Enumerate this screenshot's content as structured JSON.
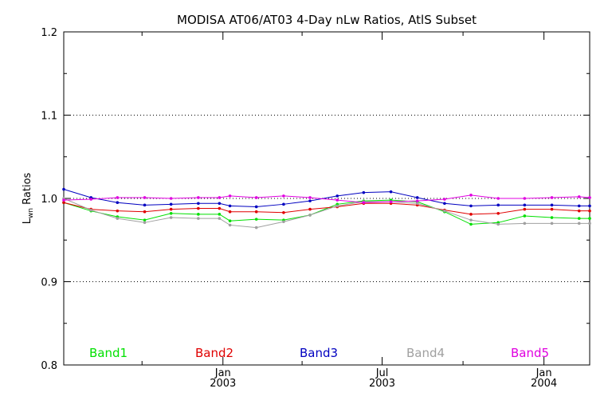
{
  "chart_data": {
    "type": "line",
    "title": "MODISA AT06/AT03 4-Day nLw Ratios, AtlS Subset",
    "ylabel_main": "L",
    "ylabel_sub": "wn",
    "ylabel_rest": " Ratios",
    "ylim": [
      0.8,
      1.2
    ],
    "yticks": [
      0.8,
      0.9,
      1.0,
      1.1,
      1.2
    ],
    "ytick_labels": [
      "0.8",
      "0.9",
      "1.0",
      "1.1",
      "1.2"
    ],
    "grid_y": [
      0.9,
      1.0,
      1.1
    ],
    "xlim": [
      "2002-07-04",
      "2004-02-22"
    ],
    "xticks_major": [
      {
        "date": "2003-01-01",
        "line1": "Jan",
        "line2": "2003"
      },
      {
        "date": "2003-07-01",
        "line1": "Jul",
        "line2": "2003"
      },
      {
        "date": "2004-01-01",
        "line1": "Jan",
        "line2": "2004"
      }
    ],
    "xticks_minor": [
      "2002-10-01",
      "2003-04-01",
      "2003-10-01"
    ],
    "x": [
      "2002-07-04",
      "2002-08-04",
      "2002-09-03",
      "2002-10-04",
      "2002-11-03",
      "2002-12-04",
      "2002-12-28",
      "2003-01-09",
      "2003-02-08",
      "2003-03-11",
      "2003-04-10",
      "2003-05-11",
      "2003-06-10",
      "2003-07-11",
      "2003-08-10",
      "2003-09-10",
      "2003-10-10",
      "2003-11-10",
      "2003-12-10",
      "2004-01-10",
      "2004-02-10",
      "2004-02-22"
    ],
    "series": [
      {
        "name": "Band1",
        "color": "#00e000",
        "values": [
          0.995,
          0.985,
          0.978,
          0.974,
          0.982,
          0.981,
          0.981,
          0.973,
          0.975,
          0.974,
          0.98,
          0.993,
          0.997,
          0.998,
          0.996,
          0.984,
          0.969,
          0.971,
          0.979,
          0.977,
          0.976,
          0.976
        ]
      },
      {
        "name": "Band2",
        "color": "#e00000",
        "values": [
          0.995,
          0.987,
          0.985,
          0.984,
          0.987,
          0.988,
          0.988,
          0.984,
          0.984,
          0.983,
          0.987,
          0.99,
          0.994,
          0.994,
          0.992,
          0.986,
          0.981,
          0.982,
          0.987,
          0.987,
          0.985,
          0.985
        ]
      },
      {
        "name": "Band3",
        "color": "#0000c0",
        "values": [
          1.011,
          1.001,
          0.995,
          0.992,
          0.993,
          0.994,
          0.994,
          0.991,
          0.99,
          0.993,
          0.997,
          1.003,
          1.007,
          1.008,
          1.001,
          0.994,
          0.991,
          0.992,
          0.992,
          0.992,
          0.991,
          0.991
        ]
      },
      {
        "name": "Band4",
        "color": "#a0a0a0",
        "values": [
          1.0,
          0.986,
          0.976,
          0.971,
          0.977,
          0.976,
          0.976,
          0.968,
          0.965,
          0.972,
          0.98,
          0.991,
          0.996,
          0.996,
          0.994,
          0.985,
          0.974,
          0.969,
          0.97,
          0.97,
          0.97,
          0.97
        ]
      },
      {
        "name": "Band5",
        "color": "#e000e0",
        "values": [
          0.998,
          0.999,
          1.001,
          1.001,
          1.0,
          1.001,
          1.001,
          1.003,
          1.001,
          1.003,
          1.001,
          0.998,
          0.995,
          0.996,
          0.997,
          0.999,
          1.004,
          1.0,
          1.0,
          1.001,
          1.002,
          1.001
        ]
      }
    ],
    "legend_placement": "bottom-inside",
    "grid": true
  }
}
